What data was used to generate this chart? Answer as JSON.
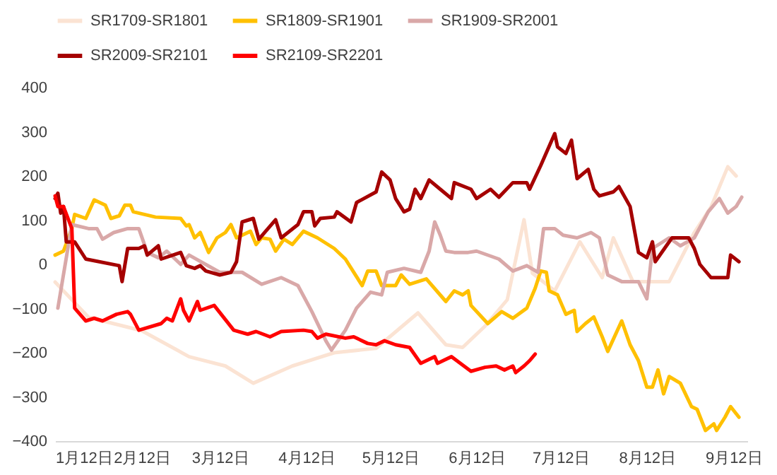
{
  "chart_data": {
    "type": "line",
    "legend": "top",
    "line_style": "solid",
    "marker": "none",
    "grid": false,
    "xlim": [
      "--01-12",
      "--09-17"
    ],
    "xticks": [
      {
        "value": "--01-12",
        "label": "1月12日"
      },
      {
        "value": "--02-12",
        "label": "2月12日"
      },
      {
        "value": "--03-12",
        "label": "3月12日"
      },
      {
        "value": "--04-12",
        "label": "4月12日"
      },
      {
        "value": "--05-12",
        "label": "5月12日"
      },
      {
        "value": "--06-12",
        "label": "6月12日"
      },
      {
        "value": "--07-12",
        "label": "7月12日"
      },
      {
        "value": "--08-12",
        "label": "8月12日"
      },
      {
        "value": "--09-12",
        "label": "9月12日"
      }
    ],
    "ylim": [
      -400,
      400
    ],
    "yticks": [
      -400,
      -300,
      -200,
      -100,
      0,
      100,
      200,
      300,
      400
    ],
    "series": [
      {
        "name": "SR1709-SR1801",
        "color": "#fbe3d3",
        "x": [
          "--01-12",
          "--01-24",
          "--02-12",
          "--03-01",
          "--03-14",
          "--03-24",
          "--04-07",
          "--04-22",
          "--05-07",
          "--05-22",
          "--06-01",
          "--06-07",
          "--06-15",
          "--06-23",
          "--06-29",
          "--07-02",
          "--07-10",
          "--07-19",
          "--07-27",
          "--07-31",
          "--08-07",
          "--08-20",
          "--08-29",
          "--09-04",
          "--09-10",
          "--09-13"
        ],
        "values": [
          -40,
          -120,
          -150,
          -209,
          -230,
          -269,
          -230,
          -200,
          -190,
          -110,
          -182,
          -188,
          -140,
          -80,
          101,
          -20,
          -60,
          51,
          -30,
          60,
          -39,
          -39,
          72,
          130,
          221,
          200
        ]
      },
      {
        "name": "SR1809-SR1901",
        "color": "#ffc000",
        "x": [
          "--01-12",
          "--01-15",
          "--01-18",
          "--01-19",
          "--01-23",
          "--01-26",
          "--01-30",
          "--02-01",
          "--02-04",
          "--02-06",
          "--02-08",
          "--02-09",
          "--02-17",
          "--02-26",
          "--02-28",
          "--03-01",
          "--03-03",
          "--03-05",
          "--03-08",
          "--03-11",
          "--03-14",
          "--03-16",
          "--03-18",
          "--03-20",
          "--03-23",
          "--03-25",
          "--03-27",
          "--03-30",
          "--04-01",
          "--04-04",
          "--04-07",
          "--04-11",
          "--04-16",
          "--04-22",
          "--04-26",
          "--05-02",
          "--05-04",
          "--05-07",
          "--05-09",
          "--05-14",
          "--05-16",
          "--05-19",
          "--05-25",
          "--06-01",
          "--06-04",
          "--06-07",
          "--06-09",
          "--06-10",
          "--06-16",
          "--06-21",
          "--06-25",
          "--06-30",
          "--07-03",
          "--07-05",
          "--07-07",
          "--07-08",
          "--07-11",
          "--07-14",
          "--07-17",
          "--07-18",
          "--07-21",
          "--07-24",
          "--07-27",
          "--07-29",
          "--08-03",
          "--08-06",
          "--08-09",
          "--08-12",
          "--08-14",
          "--08-16",
          "--08-18",
          "--08-20",
          "--08-24",
          "--08-28",
          "--08-30",
          "--09-02",
          "--09-05",
          "--09-06",
          "--09-09",
          "--09-11",
          "--09-14"
        ],
        "values": [
          21,
          30,
          81,
          113,
          104,
          146,
          134,
          104,
          110,
          134,
          134,
          119,
          107,
          104,
          87,
          90,
          60,
          72,
          27,
          60,
          72,
          90,
          60,
          66,
          75,
          45,
          60,
          57,
          30,
          57,
          45,
          75,
          60,
          36,
          12,
          -48,
          -15,
          -15,
          -48,
          -48,
          -24,
          -45,
          -33,
          -84,
          -60,
          -69,
          -60,
          -93,
          -134,
          -107,
          -122,
          -99,
          -54,
          -15,
          -18,
          -60,
          -69,
          -113,
          -104,
          -152,
          -134,
          -119,
          -164,
          -197,
          -128,
          -182,
          -218,
          -278,
          -278,
          -239,
          -293,
          -254,
          -269,
          -322,
          -328,
          -376,
          -361,
          -376,
          -346,
          -322,
          -346
        ]
      },
      {
        "name": "SR1909-SR2001",
        "color": "#d9a8a8",
        "x": [
          "--01-13",
          "--01-18",
          "--01-24",
          "--01-27",
          "--01-29",
          "--02-02",
          "--02-07",
          "--02-11",
          "--02-14",
          "--02-18",
          "--02-21",
          "--02-26",
          "--03-01",
          "--03-12",
          "--03-20",
          "--03-27",
          "--04-03",
          "--04-09",
          "--04-14",
          "--04-19",
          "--04-21",
          "--04-26",
          "--04-30",
          "--05-05",
          "--05-09",
          "--05-11",
          "--05-17",
          "--05-23",
          "--05-26",
          "--05-28",
          "--05-30",
          "--06-01",
          "--06-04",
          "--06-09",
          "--06-12",
          "--06-20",
          "--06-25",
          "--06-30",
          "--07-04",
          "--07-06",
          "--07-10",
          "--07-13",
          "--07-18",
          "--07-23",
          "--07-26",
          "--07-29",
          "--08-03",
          "--08-09",
          "--08-12",
          "--08-14",
          "--08-20",
          "--08-24",
          "--08-29",
          "--09-03",
          "--09-07",
          "--09-10",
          "--09-13",
          "--09-15"
        ],
        "values": [
          -99,
          90,
          81,
          81,
          57,
          72,
          81,
          81,
          27,
          15,
          30,
          0,
          21,
          -18,
          -18,
          -45,
          -30,
          -48,
          -107,
          -173,
          -194,
          -149,
          -99,
          -63,
          -69,
          -18,
          -9,
          -18,
          30,
          96,
          66,
          30,
          27,
          27,
          30,
          12,
          -15,
          -3,
          -18,
          81,
          81,
          66,
          60,
          72,
          60,
          -24,
          -39,
          -39,
          -78,
          36,
          60,
          42,
          60,
          119,
          149,
          116,
          131,
          152
        ]
      },
      {
        "name": "SR2009-SR2101",
        "color": "#a50000",
        "x": [
          "--01-12",
          "--01-13",
          "--01-14",
          "--01-15",
          "--01-16",
          "--01-19",
          "--01-23",
          "--02-04",
          "--02-05",
          "--02-07",
          "--02-11",
          "--02-13",
          "--02-14",
          "--02-18",
          "--02-19",
          "--02-26",
          "--02-28",
          "--03-03",
          "--03-05",
          "--03-07",
          "--03-12",
          "--03-16",
          "--03-18",
          "--03-20",
          "--03-24",
          "--03-26",
          "--04-01",
          "--04-03",
          "--04-09",
          "--04-11",
          "--04-14",
          "--04-15",
          "--04-17",
          "--04-22",
          "--04-23",
          "--04-28",
          "--04-30",
          "--05-07",
          "--05-09",
          "--05-12",
          "--05-14",
          "--05-17",
          "--05-19",
          "--05-21",
          "--05-23",
          "--05-26",
          "--05-30",
          "--06-03",
          "--06-04",
          "--06-10",
          "--06-12",
          "--06-17",
          "--06-20",
          "--06-25",
          "--06-30",
          "--07-01",
          "--07-05",
          "--07-10",
          "--07-11",
          "--07-14",
          "--07-16",
          "--07-18",
          "--07-22",
          "--07-24",
          "--07-26",
          "--07-31",
          "--08-02",
          "--08-06",
          "--08-09",
          "--08-12",
          "--08-14",
          "--08-15",
          "--08-21",
          "--08-27",
          "--08-29",
          "--08-31",
          "--09-04",
          "--09-10",
          "--09-11",
          "--09-14"
        ],
        "values": [
          149,
          161,
          116,
          131,
          51,
          51,
          12,
          -3,
          -39,
          36,
          36,
          42,
          21,
          42,
          12,
          27,
          -3,
          -9,
          -3,
          -15,
          -24,
          -18,
          6,
          96,
          104,
          57,
          101,
          60,
          90,
          119,
          119,
          87,
          104,
          107,
          119,
          96,
          140,
          164,
          209,
          191,
          149,
          119,
          125,
          170,
          149,
          191,
          170,
          149,
          185,
          170,
          149,
          170,
          152,
          185,
          185,
          170,
          224,
          296,
          266,
          251,
          281,
          194,
          215,
          170,
          155,
          164,
          176,
          131,
          27,
          15,
          51,
          6,
          60,
          60,
          36,
          0,
          -30,
          -30,
          21,
          6
        ]
      },
      {
        "name": "SR2109-SR2201",
        "color": "#ff0000",
        "x": [
          "--01-12",
          "--01-13",
          "--01-15",
          "--01-18",
          "--01-19",
          "--01-23",
          "--01-26",
          "--01-29",
          "--02-03",
          "--02-07",
          "--02-08",
          "--02-11",
          "--02-19",
          "--02-21",
          "--02-23",
          "--02-26",
          "--02-27",
          "--03-01",
          "--03-04",
          "--03-05",
          "--03-10",
          "--03-17",
          "--03-22",
          "--03-25",
          "--03-30",
          "--04-03",
          "--04-11",
          "--04-14",
          "--04-16",
          "--04-19",
          "--04-26",
          "--04-29",
          "--05-04",
          "--05-07",
          "--05-10",
          "--05-14",
          "--05-19",
          "--05-23",
          "--05-28",
          "--05-29",
          "--06-03",
          "--06-10",
          "--06-15",
          "--06-19",
          "--06-22",
          "--06-25",
          "--06-26",
          "--06-29",
          "--07-01",
          "--07-03"
        ],
        "values": [
          155,
          131,
          131,
          81,
          -99,
          -128,
          -122,
          -128,
          -113,
          -107,
          -113,
          -149,
          -134,
          -122,
          -128,
          -78,
          -104,
          -128,
          -84,
          -104,
          -93,
          -149,
          -158,
          -152,
          -164,
          -152,
          -149,
          -152,
          -167,
          -158,
          -167,
          -164,
          -179,
          -182,
          -173,
          -182,
          -188,
          -224,
          -209,
          -224,
          -209,
          -242,
          -233,
          -230,
          -239,
          -230,
          -245,
          -230,
          -218,
          -203
        ]
      }
    ]
  }
}
